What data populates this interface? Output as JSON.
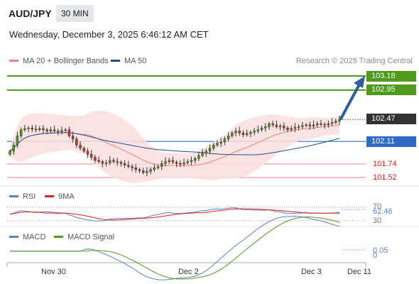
{
  "header": {
    "symbol": "AUD/JPY",
    "timeframe": "30 MIN",
    "datetime": "Wednesday, December 3, 2025 6:46:12 AM CET"
  },
  "legend": {
    "price": [
      {
        "label": "MA 20 + Bollinger Bands",
        "color": "#f08080"
      },
      {
        "label": "MA 50",
        "color": "#1f4e8c"
      }
    ],
    "credit": "Research © 2025 Trading Central",
    "rsi": [
      {
        "label": "RSI",
        "color": "#5b7fd6"
      },
      {
        "label": "9MA",
        "color": "#e0201c"
      }
    ],
    "macd": [
      {
        "label": "MACD",
        "color": "#5b7fd6"
      },
      {
        "label": "MACD Signal",
        "color": "#4e9a1a"
      }
    ]
  },
  "levels": {
    "target2": {
      "value": "103.18",
      "color": "#4e9a1a"
    },
    "target1": {
      "value": "102.95",
      "color": "#4e9a1a"
    },
    "last": {
      "value": "102.47",
      "color": "#333333"
    },
    "pivot": {
      "value": "102.11",
      "color": "#2d6bc4"
    },
    "support1": {
      "value": "101.74",
      "color": "#e0201c"
    },
    "support2": {
      "value": "101.52",
      "color": "#e0201c"
    }
  },
  "indicators": {
    "rsi_value": "62.46",
    "rsi_upper": "70",
    "rsi_lower": "30",
    "macd_value": "0.05",
    "macd_zero": "0"
  },
  "xaxis": [
    "Nov 30",
    "Dec 2",
    "Dec 3",
    "Dec 11"
  ],
  "chart_data": {
    "type": "candlestick",
    "yrange": [
      101.4,
      103.3
    ],
    "closes": [
      101.95,
      102.05,
      102.2,
      102.3,
      102.32,
      102.33,
      102.31,
      102.3,
      102.32,
      102.3,
      102.28,
      102.3,
      102.28,
      102.27,
      102.29,
      102.3,
      102.2,
      102.15,
      102.05,
      102.0,
      101.95,
      101.9,
      101.85,
      101.8,
      101.78,
      101.75,
      101.76,
      101.8,
      101.78,
      101.77,
      101.75,
      101.72,
      101.7,
      101.68,
      101.65,
      101.63,
      101.6,
      101.62,
      101.65,
      101.68,
      101.7,
      101.75,
      101.78,
      101.8,
      101.77,
      101.75,
      101.74,
      101.76,
      101.78,
      101.8,
      101.83,
      101.88,
      101.92,
      101.95,
      102.0,
      102.05,
      102.08,
      102.1,
      102.15,
      102.2,
      102.25,
      102.28,
      102.25,
      102.22,
      102.24,
      102.26,
      102.28,
      102.3,
      102.33,
      102.35,
      102.4,
      102.38,
      102.35,
      102.36,
      102.33,
      102.3,
      102.32,
      102.34,
      102.35,
      102.37,
      102.38,
      102.36,
      102.38,
      102.4,
      102.39,
      102.38,
      102.4,
      102.42,
      102.44,
      102.47
    ]
  }
}
